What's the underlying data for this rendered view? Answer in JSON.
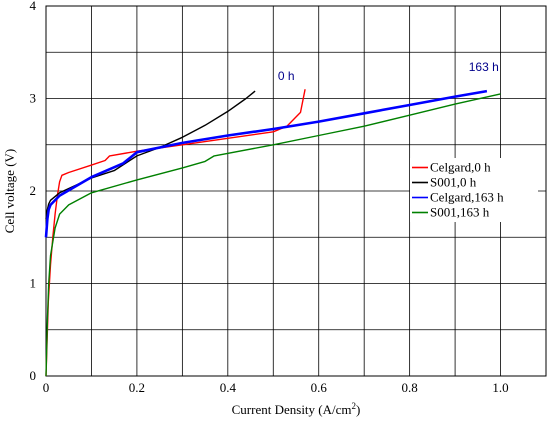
{
  "chart_data": {
    "type": "line",
    "xlabel": "Current Density (A/cm",
    "xlabel_sup": "2",
    "xlabel_close": ")",
    "ylabel": "Cell voltage (V)",
    "xlim": [
      0,
      1.1
    ],
    "ylim": [
      0,
      4
    ],
    "x_ticks": [
      0,
      0.2,
      0.4,
      0.6,
      0.8,
      1.0
    ],
    "x_tick_labels": [
      "0",
      "0.2",
      "0.4",
      "0.6",
      "0.8",
      "1.0"
    ],
    "y_ticks": [
      0,
      1,
      2,
      3,
      4
    ],
    "y_tick_labels": [
      "0",
      "1",
      "2",
      "3",
      "4"
    ],
    "grid": true,
    "legend_position": "right",
    "annotations": [
      {
        "text": "0 h",
        "x": 0.51,
        "y": 3.2
      },
      {
        "text": "163 h",
        "x": 0.93,
        "y": 3.3
      }
    ],
    "series": [
      {
        "name": "Celgard,0 h",
        "color": "#FF0000",
        "x": [
          0.0,
          0.005,
          0.01,
          0.015,
          0.02,
          0.025,
          0.03,
          0.035,
          0.05,
          0.1,
          0.13,
          0.14,
          0.2,
          0.3,
          0.4,
          0.5,
          0.53,
          0.56,
          0.57
        ],
        "y": [
          0.0,
          0.8,
          1.2,
          1.5,
          1.75,
          1.95,
          2.1,
          2.17,
          2.2,
          2.28,
          2.33,
          2.38,
          2.43,
          2.5,
          2.57,
          2.64,
          2.7,
          2.85,
          3.1
        ]
      },
      {
        "name": "S001,0 h",
        "color": "#000000",
        "x": [
          0.0,
          0.003,
          0.006,
          0.01,
          0.03,
          0.1,
          0.15,
          0.2,
          0.25,
          0.3,
          0.35,
          0.4,
          0.44,
          0.46
        ],
        "y": [
          1.7,
          1.8,
          1.86,
          1.9,
          1.98,
          2.14,
          2.22,
          2.38,
          2.47,
          2.58,
          2.71,
          2.86,
          3.0,
          3.08
        ]
      },
      {
        "name": "Celgard,163 h",
        "color": "#0000FF",
        "x": [
          0.0,
          0.003,
          0.006,
          0.01,
          0.03,
          0.1,
          0.17,
          0.2,
          0.3,
          0.4,
          0.5,
          0.6,
          0.7,
          0.8,
          0.9,
          0.97
        ],
        "y": [
          1.5,
          1.7,
          1.8,
          1.85,
          1.95,
          2.15,
          2.3,
          2.42,
          2.52,
          2.6,
          2.67,
          2.75,
          2.84,
          2.93,
          3.02,
          3.08
        ]
      },
      {
        "name": "S001,163 h",
        "color": "#008000",
        "x": [
          0.0,
          0.003,
          0.006,
          0.01,
          0.02,
          0.03,
          0.05,
          0.1,
          0.2,
          0.3,
          0.35,
          0.37,
          0.5,
          0.6,
          0.7,
          0.8,
          0.9,
          1.0
        ],
        "y": [
          0.0,
          0.6,
          1.0,
          1.3,
          1.6,
          1.75,
          1.85,
          1.98,
          2.12,
          2.25,
          2.32,
          2.38,
          2.5,
          2.6,
          2.7,
          2.82,
          2.94,
          3.05
        ]
      }
    ]
  }
}
